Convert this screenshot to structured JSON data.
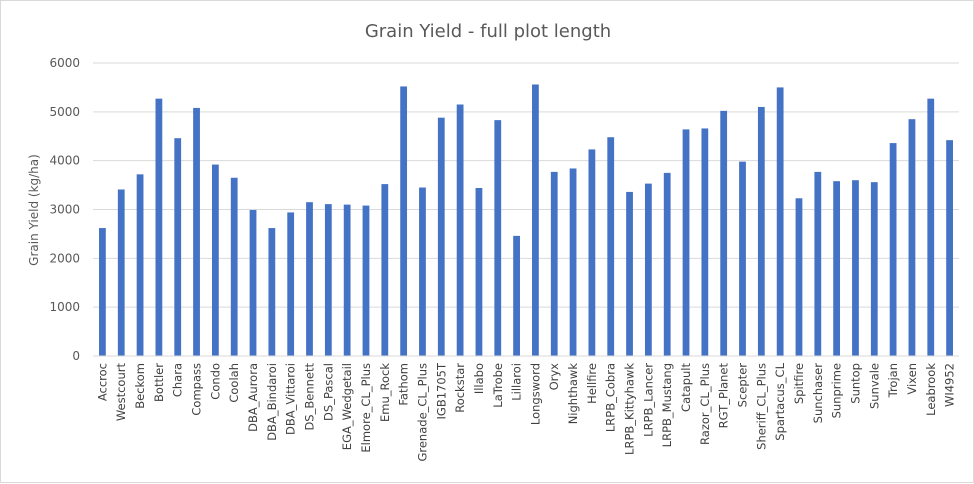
{
  "chart_data": {
    "type": "bar",
    "title": "Grain Yield - full plot length",
    "xlabel": "",
    "ylabel": "Grain Yield (kg/ha)",
    "ylim": [
      0,
      6000
    ],
    "yticks": [
      0,
      1000,
      2000,
      3000,
      4000,
      5000,
      6000
    ],
    "grid": true,
    "legend": "none",
    "bar_color": "#4472C4",
    "categories": [
      "Accroc",
      "Westcourt",
      "Beckom",
      "Bottler",
      "Chara",
      "Compass",
      "Condo",
      "Coolah",
      "DBA_Aurora",
      "DBA_Bindaroi",
      "DBA_Vittaroi",
      "DS_Bennett",
      "DS_Pascal",
      "EGA_Wedgetail",
      "Elmore_CL_Plus",
      "Emu_Rock",
      "Fathom",
      "Grenade_CL_Plus",
      "IGB1705T",
      "Rockstar",
      "Illabo",
      "LaTrobe",
      "Lillaroi",
      "Longsword",
      "Oryx",
      "Nighthawk",
      "Hellfire",
      "LRPB_Cobra",
      "LRPB_Kittyhawk",
      "LRPB_Lancer",
      "LRPB_Mustang",
      "Catapult",
      "Razor_CL_Plus",
      "RGT_Planet",
      "Scepter",
      "Sheriff_CL_Plus",
      "Spartacus_CL",
      "Spitfire",
      "Sunchaser",
      "Sunprime",
      "Suntop",
      "Sunvale",
      "Trojan",
      "Vixen",
      "Leabrook",
      "WI4952"
    ],
    "values": [
      2620,
      3410,
      3720,
      5270,
      4460,
      5080,
      3920,
      3650,
      2990,
      2620,
      2940,
      3150,
      3110,
      3100,
      3080,
      3520,
      5520,
      3450,
      4880,
      5150,
      3440,
      4830,
      2460,
      5560,
      3770,
      3840,
      4230,
      4480,
      3360,
      3530,
      3750,
      4640,
      4660,
      5020,
      3980,
      5100,
      5500,
      3230,
      3770,
      3580,
      3600,
      3560,
      4360,
      4850,
      5270,
      4420
    ]
  }
}
